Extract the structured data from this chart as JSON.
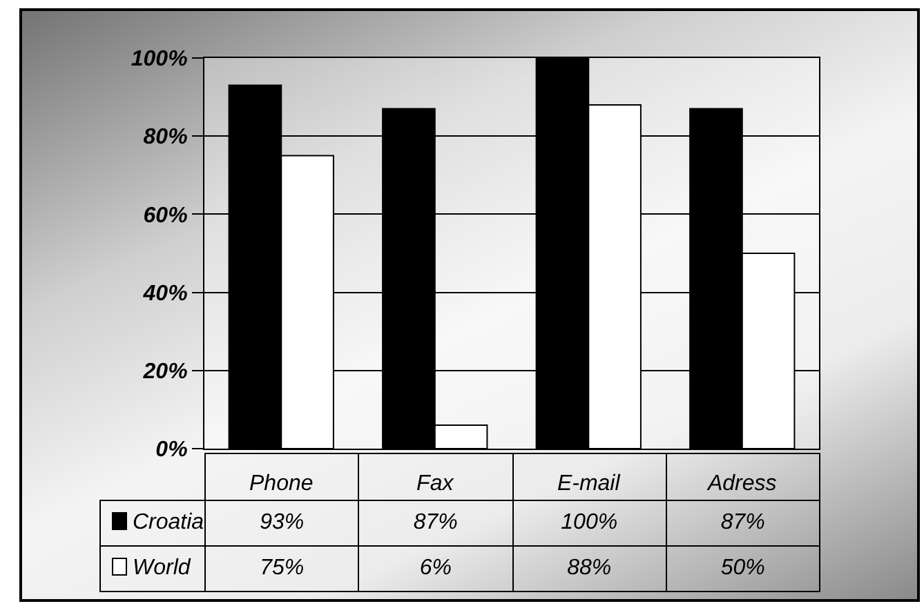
{
  "chart_data": {
    "type": "bar",
    "categories": [
      "Phone",
      "Fax",
      "E-mail",
      "Adress"
    ],
    "series": [
      {
        "name": "Croatia",
        "color": "#000000",
        "values": [
          93,
          87,
          100,
          87
        ],
        "value_labels": [
          "93%",
          "87%",
          "100%",
          "87%"
        ]
      },
      {
        "name": "World",
        "color": "#ffffff",
        "values": [
          75,
          6,
          88,
          50
        ],
        "value_labels": [
          "75%",
          "6%",
          "88%",
          "50%"
        ]
      }
    ],
    "ylim": [
      0,
      100
    ],
    "yticks": [
      {
        "value": 0,
        "label": "0%"
      },
      {
        "value": 20,
        "label": "20%"
      },
      {
        "value": 40,
        "label": "40%"
      },
      {
        "value": 60,
        "label": "60%"
      },
      {
        "value": 80,
        "label": "80%"
      },
      {
        "value": 100,
        "label": "100%"
      }
    ],
    "grid": "y",
    "legend": "bottom left"
  }
}
